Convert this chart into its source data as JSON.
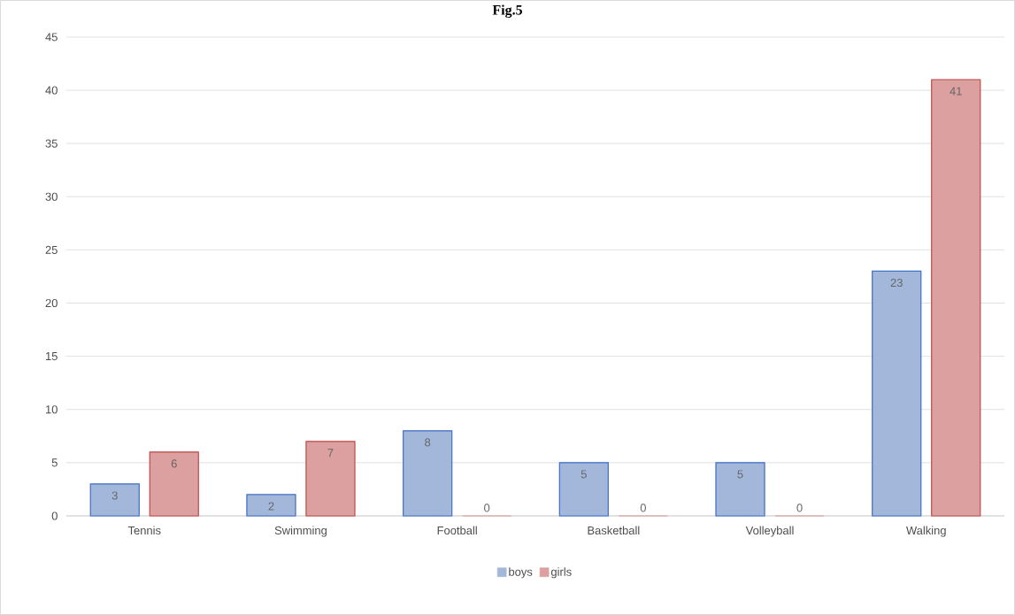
{
  "chart_data": {
    "type": "bar",
    "title": "Fig.5",
    "categories": [
      "Tennis",
      "Swimming",
      "Football",
      "Basketball",
      "Volleyball",
      "Walking"
    ],
    "series": [
      {
        "name": "boys",
        "color": "#a2b7d9",
        "values": [
          3,
          2,
          8,
          5,
          5,
          23
        ]
      },
      {
        "name": "girls",
        "color": "#dba09f",
        "values": [
          6,
          7,
          0,
          0,
          0,
          41
        ]
      }
    ],
    "ylim": [
      0,
      45
    ],
    "yticks": [
      0,
      5,
      10,
      15,
      20,
      25,
      30,
      35,
      40,
      45
    ],
    "grid": "y",
    "legend": "bottom",
    "data_labels": true
  }
}
